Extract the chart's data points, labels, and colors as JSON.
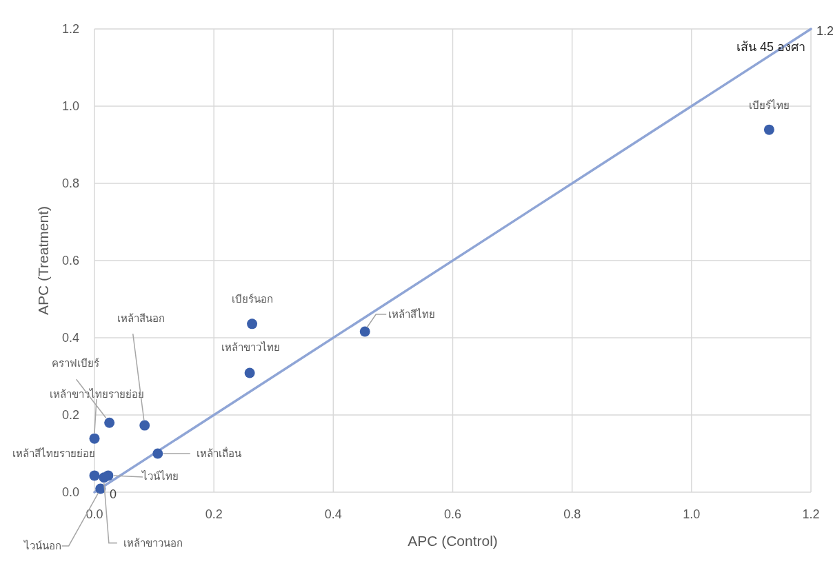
{
  "chart_data": {
    "type": "scatter",
    "xlabel": "APC (Control)",
    "ylabel": "APC (Treatment)",
    "xlim": [
      0,
      1.2
    ],
    "ylim": [
      0,
      1.2
    ],
    "xticks": [
      {
        "value": 0,
        "label": "0.0"
      },
      0.2,
      0.4,
      0.6,
      0.8,
      {
        "value": 1,
        "label": "1.0"
      },
      1.2
    ],
    "yticks": [
      {
        "value": 0,
        "label": "0.0"
      },
      0.2,
      0.4,
      0.6,
      0.8,
      {
        "value": 1,
        "label": "1.0"
      },
      1.2
    ],
    "grid": true,
    "series": [
      {
        "color": "#3a5fab",
        "marker": "circle",
        "x": [
          0.0,
          0.023,
          0.016,
          0.01,
          0.0,
          0.025,
          0.084,
          0.106,
          0.26,
          0.264,
          0.453,
          1.13
        ],
        "values": [
          0.043,
          0.043,
          0.038,
          0.009,
          0.139,
          0.18,
          0.173,
          0.1,
          0.309,
          0.436,
          0.416,
          0.939
        ]
      },
      {
        "type": "line",
        "name": "เส้น 45 องศา",
        "color": "#8fa5d6",
        "line_style": "solid",
        "x": [
          0,
          1.2
        ],
        "values": [
          0,
          1.2
        ],
        "value_labels": [
          "0",
          "1.2"
        ]
      }
    ],
    "annotations": [
      {
        "text": "เหล้าสีไทยรายย่อย",
        "x": 0.0,
        "y": 0.043
      },
      {
        "text": "ไวน์ไทย",
        "x": 0.023,
        "y": 0.043
      },
      {
        "text": "เหล้าขาวนอก",
        "x": 0.016,
        "y": 0.038
      },
      {
        "text": "ไวน์นอก",
        "x": 0.01,
        "y": 0.009
      },
      {
        "text": "เหล้าขาวไทยรายย่อย",
        "x": 0.0,
        "y": 0.139
      },
      {
        "text": "คราฟเบียร์",
        "x": 0.025,
        "y": 0.18
      },
      {
        "text": "เหล้าสีนอก",
        "x": 0.084,
        "y": 0.173
      },
      {
        "text": "เหล้าเถื่อน",
        "x": 0.106,
        "y": 0.1
      },
      {
        "text": "เหล้าขาวไทย",
        "x": 0.26,
        "y": 0.309
      },
      {
        "text": "เบียร์นอก",
        "x": 0.264,
        "y": 0.436
      },
      {
        "text": "เหล้าสีไทย",
        "x": 0.453,
        "y": 0.416
      },
      {
        "text": "เบียร์ไทย",
        "x": 1.13,
        "y": 0.939
      }
    ]
  }
}
